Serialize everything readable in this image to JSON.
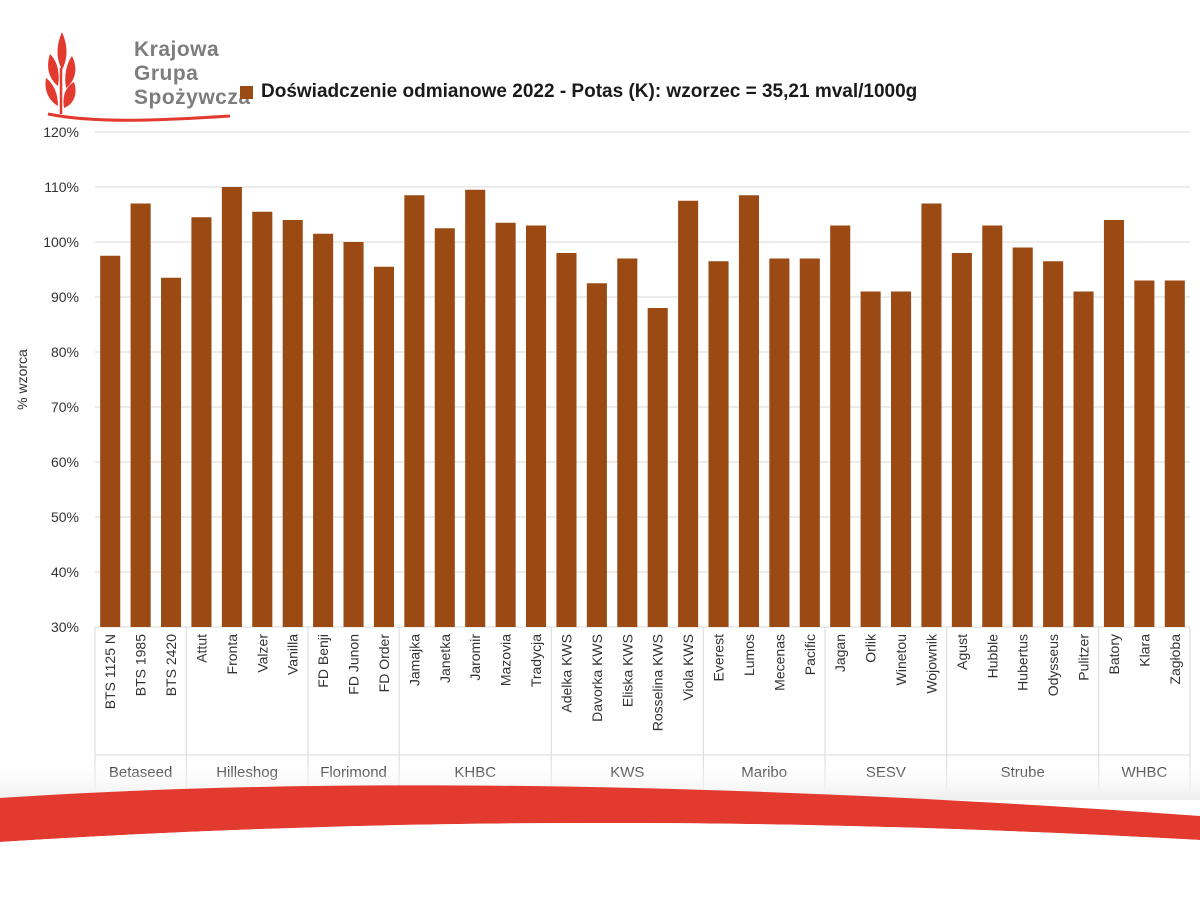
{
  "logo": {
    "lines": [
      "Krajowa",
      "Grupa",
      "Spożywcza"
    ],
    "color": "#7d7d7d",
    "accent": "#e23a2e"
  },
  "chart_data": {
    "type": "bar",
    "title": "",
    "legend": [
      "Doświadczenie odmianowe 2022 - Potas (K): wzorzec = 35,21 mval/1000g"
    ],
    "legend_placement": "top",
    "ylabel": "% wzorca",
    "xlabel": "",
    "ylim": [
      30,
      120
    ],
    "y_ticks": [
      "30%",
      "40%",
      "50%",
      "60%",
      "70%",
      "80%",
      "90%",
      "100%",
      "110%",
      "120%"
    ],
    "grid": true,
    "bar_color": "#9c4a13",
    "series": [
      {
        "name": "Doświadczenie odmianowe 2022 - Potas (K): wzorzec = 35,21 mval/1000g",
        "values": [
          97.5,
          107,
          93.5,
          104.5,
          110,
          105.5,
          104,
          101.5,
          100,
          95.5,
          108.5,
          102.5,
          109.5,
          103.5,
          103,
          98,
          92.5,
          97,
          88,
          107.5,
          96.5,
          108.5,
          97,
          97,
          103,
          91,
          91,
          107,
          98,
          103,
          99,
          96.5,
          91,
          104,
          93,
          93
        ]
      }
    ],
    "categories": [
      "BTS 1125 N",
      "BTS 1985",
      "BTS 2420",
      "Attut",
      "Fronta",
      "Valzer",
      "Vanilla",
      "FD Benji",
      "FD Junon",
      "FD Order",
      "Jamajka",
      "Janetka",
      "Jaromir",
      "Mazovia",
      "Tradycja",
      "Adelka KWS",
      "Davorka KWS",
      "Eliska KWS",
      "Rosselina KWS",
      "Viola KWS",
      "Everest",
      "Lumos",
      "Mecenas",
      "Pacific",
      "Jagan",
      "Orlik",
      "Winetou",
      "Wojownik",
      "Agust",
      "Hubble",
      "Hubertus",
      "Odysseus",
      "Pulitzer",
      "Batory",
      "Klara",
      "Zagłoba"
    ],
    "groups": [
      {
        "name": "Betaseed",
        "count": 3
      },
      {
        "name": "Hilleshog",
        "count": 4
      },
      {
        "name": "Florimond",
        "count": 3
      },
      {
        "name": "KHBC",
        "count": 5
      },
      {
        "name": "KWS",
        "count": 5
      },
      {
        "name": "Maribo",
        "count": 4
      },
      {
        "name": "SESV",
        "count": 4
      },
      {
        "name": "Strube",
        "count": 5
      },
      {
        "name": "WHBC",
        "count": 3
      }
    ]
  }
}
